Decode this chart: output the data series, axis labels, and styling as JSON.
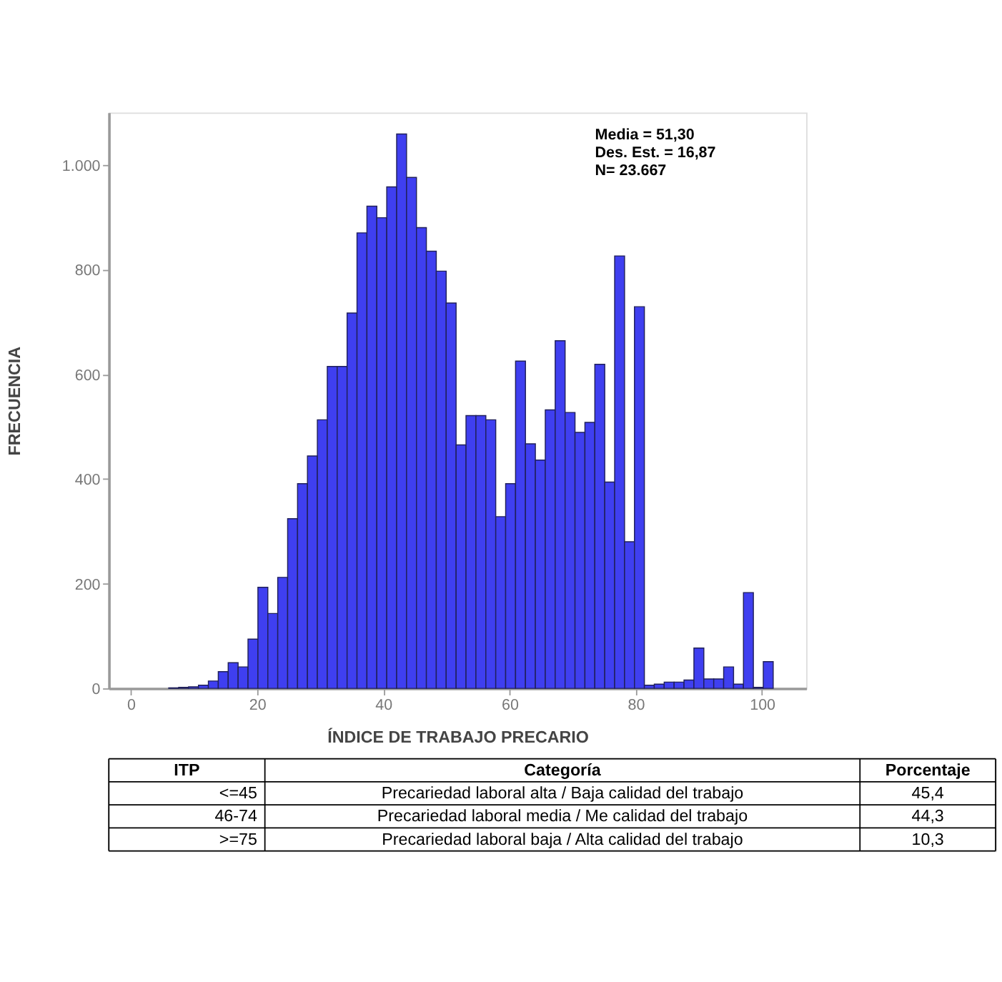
{
  "chart_data": {
    "type": "histogram",
    "xlabel": "ÍNDICE DE TRABAJO PRECARIO",
    "ylabel": "FRECUENCIA",
    "color": "#3f3ff0",
    "bins": [
      6.0,
      7.57,
      9.14,
      10.71,
      12.28,
      13.85,
      15.42,
      16.99,
      18.56,
      20.13,
      21.7,
      23.27,
      24.84,
      26.41,
      27.98,
      29.55,
      31.12,
      32.69,
      34.26,
      35.83,
      37.4,
      38.97,
      40.54,
      42.11,
      43.68,
      45.25,
      46.82,
      48.39,
      49.96,
      51.53,
      53.1,
      54.67,
      56.24,
      57.81,
      59.38,
      60.95,
      62.52,
      64.09,
      65.66,
      67.23,
      68.8,
      70.37,
      71.94,
      73.51,
      75.08,
      76.65,
      78.22,
      79.79,
      81.36,
      82.93,
      84.5,
      86.07,
      87.64,
      89.21,
      90.78,
      92.35,
      93.92,
      95.49,
      97.06,
      98.63,
      100.2,
      101.77
    ],
    "values": [
      1,
      2,
      3,
      6,
      14,
      32,
      49,
      41,
      94,
      193,
      143,
      212,
      324,
      391,
      444,
      513,
      615,
      615,
      717,
      870,
      921,
      899,
      958,
      1059,
      976,
      880,
      835,
      797,
      736,
      465,
      521,
      521,
      513,
      328,
      391,
      625,
      467,
      436,
      532,
      664,
      527,
      489,
      508,
      619,
      394,
      826,
      280,
      729,
      6,
      8,
      12,
      12,
      16,
      77,
      18,
      18,
      41,
      8,
      183,
      2,
      51
    ],
    "xlim": [
      -3.5,
      107
    ],
    "xticks": [
      0,
      20,
      40,
      60,
      80,
      100
    ],
    "ylim": [
      0,
      1100
    ],
    "yticks": [
      0,
      200,
      400,
      600,
      800,
      {
        "value": 1000,
        "label": "1.000"
      }
    ],
    "annotations": [
      "Media = 51,30",
      "Des. Est. = 16,87",
      "N= 23.667",
      "ITP",
      "Categoría",
      "Porcentaje",
      "<=45",
      "Precariedad laboral alta / Baja calidad del trabajo",
      "45,4",
      "46-74",
      "Precariedad laboral media / Me calidad del trabajo",
      "44,3",
      ">=75",
      "Precariedad laboral baja / Alta calidad del trabajo",
      "10,3"
    ]
  }
}
